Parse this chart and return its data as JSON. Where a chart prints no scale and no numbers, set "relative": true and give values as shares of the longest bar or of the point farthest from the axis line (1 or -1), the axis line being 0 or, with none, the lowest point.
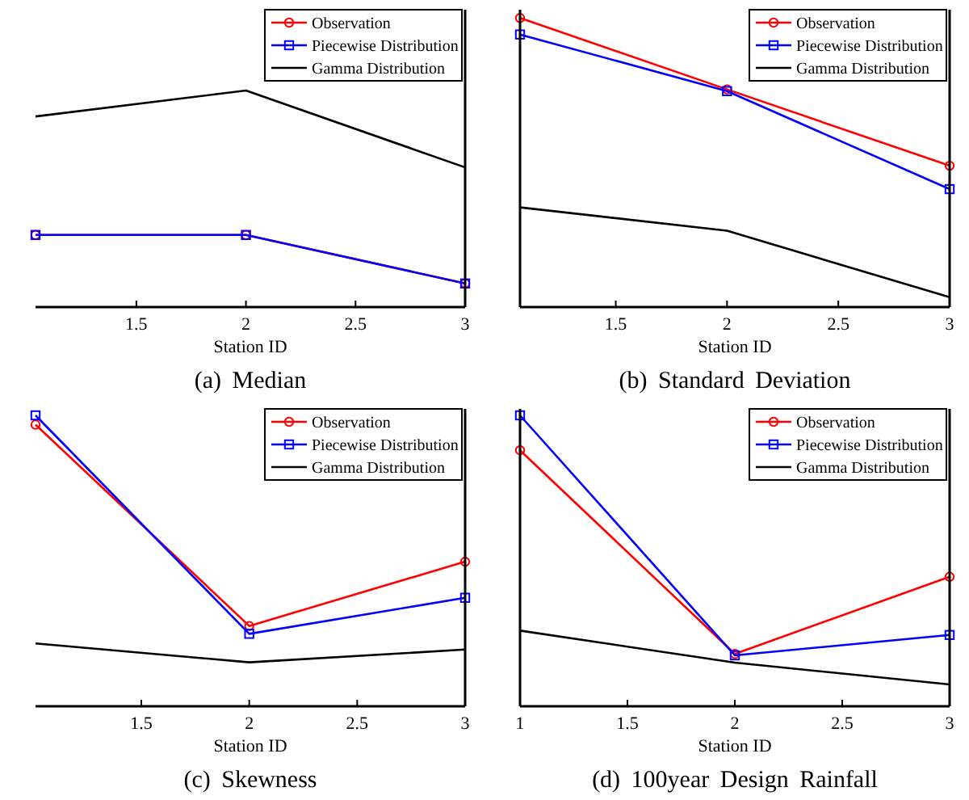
{
  "chart_data": [
    {
      "type": "line",
      "title": "(a) Median",
      "xlabel": "Station ID",
      "relative": true,
      "xlim": [
        1.04,
        3
      ],
      "xticks": [
        1.5,
        2,
        2.5,
        3
      ],
      "x": [
        1.04,
        2,
        3
      ],
      "legend": "top right",
      "series": [
        {
          "name": "Observation",
          "color": "#ff0000",
          "marker": "circle",
          "values": [
            0.333,
            0.333,
            0.109
          ]
        },
        {
          "name": "Piecewise Distribution",
          "color": "#0000ff",
          "marker": "square",
          "values": [
            0.333,
            0.333,
            0.109
          ]
        },
        {
          "name": "Gamma Distribution",
          "color": "#000000",
          "marker": "none",
          "values": [
            0.88,
            1,
            0.645
          ]
        }
      ]
    },
    {
      "type": "line",
      "title": "(b) Standard Deviation",
      "xlabel": "Station ID",
      "relative": true,
      "xlim": [
        1.07,
        3
      ],
      "xticks": [
        1.5,
        2,
        2.5,
        3
      ],
      "x": [
        1.07,
        2,
        3
      ],
      "legend": "top right",
      "series": [
        {
          "name": "Observation",
          "color": "#ff0000",
          "marker": "circle",
          "values": [
            1,
            0.753,
            0.489
          ]
        },
        {
          "name": "Piecewise Distribution",
          "color": "#0000ff",
          "marker": "square",
          "values": [
            0.943,
            0.747,
            0.408
          ]
        },
        {
          "name": "Gamma Distribution",
          "color": "#000000",
          "marker": "none",
          "values": [
            0.345,
            0.264,
            0.034
          ]
        }
      ]
    },
    {
      "type": "line",
      "title": "(c) Skewness",
      "xlabel": "Station ID",
      "relative": true,
      "xlim": [
        1.01,
        3
      ],
      "xticks": [
        1.5,
        2,
        2.5,
        3
      ],
      "x": [
        1.01,
        2,
        3
      ],
      "legend": "top right",
      "series": [
        {
          "name": "Observation",
          "color": "#ff0000",
          "marker": "circle",
          "values": [
            0.968,
            0.276,
            0.497
          ]
        },
        {
          "name": "Piecewise Distribution",
          "color": "#0000ff",
          "marker": "square",
          "values": [
            1,
            0.249,
            0.373
          ]
        },
        {
          "name": "Gamma Distribution",
          "color": "#000000",
          "marker": "none",
          "values": [
            0.216,
            0.151,
            0.195
          ]
        }
      ]
    },
    {
      "type": "line",
      "title": "(d) 100year Design Rainfall",
      "xlabel": "Station ID",
      "relative": true,
      "xlim": [
        1,
        3
      ],
      "xticks": [
        1,
        1.5,
        2,
        2.5,
        3
      ],
      "x": [
        1,
        2,
        3
      ],
      "legend": "top right",
      "series": [
        {
          "name": "Observation",
          "color": "#ff0000",
          "marker": "circle",
          "values": [
            0.88,
            0.18,
            0.445
          ]
        },
        {
          "name": "Piecewise Distribution",
          "color": "#0000ff",
          "marker": "square",
          "values": [
            1,
            0.175,
            0.245
          ]
        },
        {
          "name": "Gamma Distribution",
          "color": "#000000",
          "marker": "none",
          "values": [
            0.26,
            0.15,
            0.075
          ]
        }
      ]
    }
  ]
}
